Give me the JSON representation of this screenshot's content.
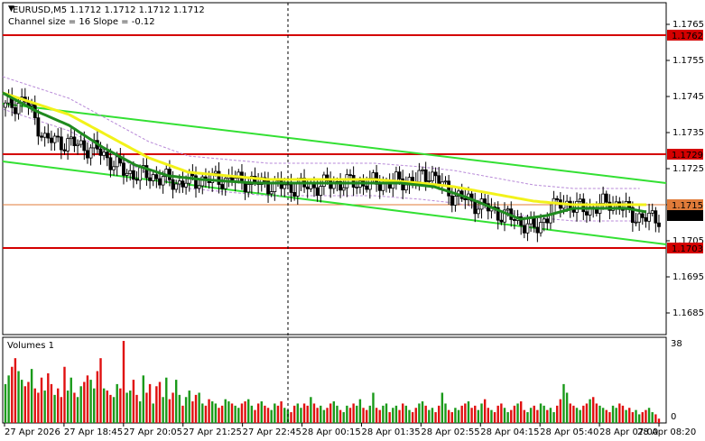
{
  "header": {
    "symbol_line": "EURUSD,M5  1.1712 1.1712 1.1712 1.1712",
    "indicator_line": "Channel size = 16 Slope = -0.12"
  },
  "volumes_panel": {
    "title": "Volumes 1",
    "max_label": "38",
    "min_label": "0"
  },
  "colors": {
    "level_line": "#d40000",
    "channel": "#33e033",
    "ma_fast": "#1f8a1f",
    "ma_slow": "#f2f21a",
    "envelope": "#b88ad8",
    "volume_up": "#1a9a1a",
    "volume_down": "#e01010",
    "crosshair": "#000000",
    "current_price_line": "#e07b39"
  },
  "chart_data": {
    "type": "candlestick",
    "symbol": "EURUSD",
    "timeframe": "M5",
    "ylim": [
      1.1679,
      1.1771
    ],
    "price_ticks": [
      "1.1765",
      "1.1755",
      "1.1745",
      "1.1735",
      "1.1725",
      "1.1715",
      "1.1705",
      "1.1695",
      "1.1685"
    ],
    "x_ticks": [
      "27 Apr 2026",
      "27 Apr 18:45",
      "27 Apr 20:05",
      "27 Apr 21:25",
      "27 Apr 22:45",
      "28 Apr 00:15",
      "28 Apr 01:35",
      "28 Apr 02:55",
      "28 Apr 04:15",
      "28 Apr 05:40",
      "28 Apr 07:00",
      "28 Apr 08:20"
    ],
    "levels": [
      {
        "price": 1.1762,
        "label": "1.1762"
      },
      {
        "price": 1.1729,
        "label": "1.1729"
      },
      {
        "price": 1.1703,
        "label": "1.1703"
      }
    ],
    "current_price": {
      "price": 1.1712,
      "label": "1.1712"
    },
    "ma_label": {
      "price": 1.1715,
      "label": "1.1715"
    },
    "channel": {
      "upper": [
        [
          0,
          1.1743
        ],
        [
          1,
          1.1721
        ]
      ],
      "lower": [
        [
          0,
          1.1727
        ],
        [
          1,
          1.1704
        ]
      ]
    },
    "close_anchors": [
      [
        0.0,
        1.1742
      ],
      [
        0.03,
        1.1744
      ],
      [
        0.06,
        1.1733
      ],
      [
        0.1,
        1.1732
      ],
      [
        0.14,
        1.173
      ],
      [
        0.18,
        1.1724
      ],
      [
        0.22,
        1.1723
      ],
      [
        0.26,
        1.1721
      ],
      [
        0.3,
        1.1722
      ],
      [
        0.34,
        1.1722
      ],
      [
        0.38,
        1.1721
      ],
      [
        0.42,
        1.172
      ],
      [
        0.46,
        1.172
      ],
      [
        0.5,
        1.1721
      ],
      [
        0.54,
        1.1721
      ],
      [
        0.58,
        1.1721
      ],
      [
        0.62,
        1.1722
      ],
      [
        0.64,
        1.1724
      ],
      [
        0.67,
        1.1718
      ],
      [
        0.7,
        1.1716
      ],
      [
        0.74,
        1.1713
      ],
      [
        0.78,
        1.171
      ],
      [
        0.8,
        1.1708
      ],
      [
        0.82,
        1.1713
      ],
      [
        0.84,
        1.1716
      ],
      [
        0.86,
        1.1714
      ],
      [
        0.89,
        1.1714
      ],
      [
        0.91,
        1.1716
      ],
      [
        0.94,
        1.1713
      ],
      [
        0.96,
        1.1711
      ],
      [
        1.0,
        1.1712
      ]
    ],
    "ma_fast": [
      [
        0.0,
        1.1746
      ],
      [
        0.05,
        1.1741
      ],
      [
        0.1,
        1.1737
      ],
      [
        0.15,
        1.1731
      ],
      [
        0.2,
        1.1726
      ],
      [
        0.25,
        1.1723
      ],
      [
        0.3,
        1.1722
      ],
      [
        0.38,
        1.1721
      ],
      [
        0.45,
        1.1721
      ],
      [
        0.52,
        1.1721
      ],
      [
        0.6,
        1.1721
      ],
      [
        0.65,
        1.172
      ],
      [
        0.7,
        1.1717
      ],
      [
        0.74,
        1.1714
      ],
      [
        0.78,
        1.1711
      ],
      [
        0.82,
        1.1712
      ],
      [
        0.86,
        1.1714
      ],
      [
        0.9,
        1.1714
      ],
      [
        0.94,
        1.1714
      ],
      [
        0.97,
        1.1713
      ]
    ],
    "ma_slow": [
      [
        0.0,
        1.1746
      ],
      [
        0.05,
        1.1743
      ],
      [
        0.1,
        1.174
      ],
      [
        0.16,
        1.1734
      ],
      [
        0.22,
        1.1728
      ],
      [
        0.28,
        1.1724
      ],
      [
        0.34,
        1.1723
      ],
      [
        0.4,
        1.1722
      ],
      [
        0.48,
        1.1722
      ],
      [
        0.56,
        1.1722
      ],
      [
        0.63,
        1.1721
      ],
      [
        0.68,
        1.172
      ],
      [
        0.74,
        1.1718
      ],
      [
        0.8,
        1.1716
      ],
      [
        0.86,
        1.1715
      ],
      [
        0.92,
        1.1715
      ],
      [
        0.97,
        1.1715
      ]
    ],
    "volumes": [
      18,
      22,
      26,
      30,
      24,
      20,
      17,
      19,
      25,
      16,
      14,
      21,
      15,
      23,
      18,
      13,
      16,
      12,
      26,
      15,
      21,
      14,
      12,
      17,
      19,
      22,
      20,
      16,
      24,
      30,
      16,
      15,
      13,
      12,
      18,
      16,
      38,
      14,
      15,
      20,
      13,
      10,
      22,
      14,
      18,
      9,
      17,
      19,
      12,
      21,
      11,
      14,
      20,
      13,
      8,
      12,
      15,
      10,
      13,
      14,
      9,
      8,
      11,
      10,
      9,
      7,
      8,
      11,
      10,
      9,
      8,
      7,
      9,
      10,
      11,
      8,
      6,
      9,
      10,
      8,
      7,
      6,
      9,
      8,
      10,
      7,
      6,
      5,
      8,
      9,
      7,
      9,
      8,
      12,
      9,
      7,
      8,
      6,
      7,
      9,
      10,
      8,
      6,
      5,
      8,
      7,
      9,
      8,
      11,
      7,
      6,
      8,
      14,
      7,
      6,
      8,
      9,
      5,
      7,
      8,
      6,
      9,
      8,
      6,
      5,
      7,
      9,
      10,
      8,
      6,
      7,
      5,
      8,
      14,
      9,
      6,
      5,
      7,
      6,
      8,
      9,
      10,
      7,
      8,
      6,
      9,
      11,
      7,
      6,
      5,
      8,
      9,
      7,
      5,
      6,
      8,
      9,
      10,
      6,
      5,
      7,
      8,
      6,
      9,
      8,
      6,
      7,
      5,
      8,
      11,
      18,
      14,
      9,
      8,
      7,
      6,
      8,
      9,
      11,
      12,
      9,
      8,
      7,
      6,
      5,
      8,
      7,
      9,
      8,
      6,
      7,
      5,
      6,
      4,
      5,
      6,
      7,
      5,
      4,
      2
    ]
  }
}
